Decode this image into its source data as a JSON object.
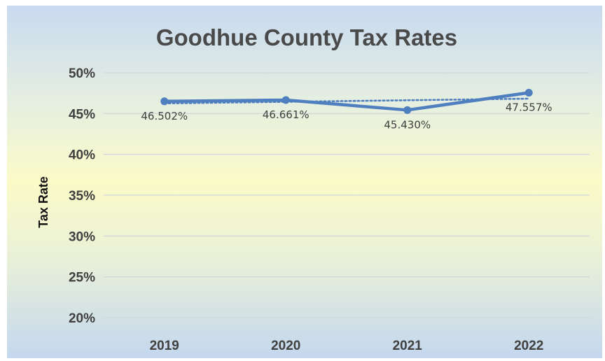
{
  "chart_data": {
    "type": "line",
    "title": "Goodhue County Tax Rates",
    "xlabel": "",
    "ylabel": "Tax Rate",
    "categories": [
      "2019",
      "2020",
      "2021",
      "2022"
    ],
    "series": [
      {
        "values": [
          46.502,
          46.661,
          45.43,
          47.557
        ],
        "labels": [
          "46.502%",
          "46.661%",
          "45.430%",
          "47.557%"
        ]
      }
    ],
    "trendline": {
      "type": "linear",
      "style": "dotted"
    },
    "y_ticks": [
      "20%",
      "25%",
      "30%",
      "35%",
      "40%",
      "45%",
      "50%"
    ],
    "ylim": [
      20,
      50
    ],
    "grid": true,
    "legend": "none",
    "colors": {
      "series": "#4f7fbf",
      "grid": "#d4d8dc",
      "background_top": "#c9daf0",
      "background_mid": "#fbfbc8"
    }
  }
}
